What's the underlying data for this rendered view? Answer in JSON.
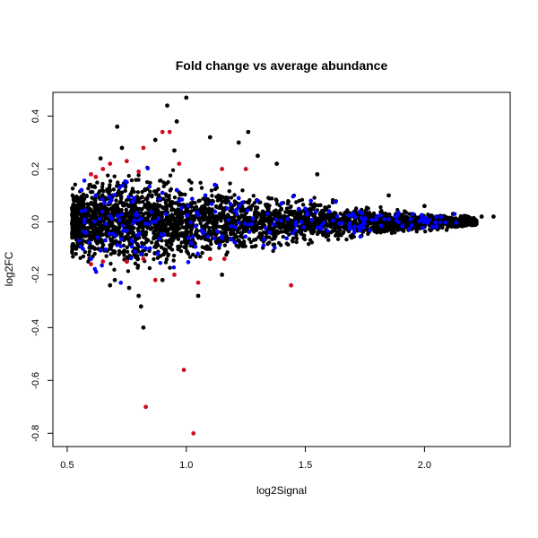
{
  "chart_data": {
    "type": "scatter",
    "title": "Fold change vs average abundance",
    "xlabel": "log2Signal",
    "ylabel": "log2FC",
    "xlim": [
      0.44,
      2.36
    ],
    "ylim": [
      -0.85,
      0.49
    ],
    "xticks": [
      0.5,
      1.0,
      1.5,
      2.0
    ],
    "yticks": [
      -0.8,
      -0.6,
      -0.4,
      -0.2,
      0.0,
      0.2,
      0.4
    ],
    "xtick_labels": [
      "0.5",
      "1.0",
      "1.5",
      "2.0"
    ],
    "ytick_labels": [
      "-0.8",
      "-0.6",
      "-0.4",
      "-0.2",
      "0.0",
      "0.2",
      "0.4"
    ],
    "grid": false,
    "legend": "none",
    "colors": {
      "black": "#000000",
      "blue": "#0000ff",
      "red": "#cd0a1e"
    },
    "series": [
      {
        "color": "black",
        "points": [
          [
            0.82,
            -0.4
          ],
          [
            0.81,
            -0.32
          ],
          [
            0.8,
            -0.28
          ],
          [
            0.92,
            0.44
          ],
          [
            1.0,
            0.47
          ],
          [
            0.96,
            0.38
          ],
          [
            0.87,
            0.31
          ],
          [
            0.71,
            0.36
          ],
          [
            1.22,
            0.3
          ],
          [
            1.26,
            0.34
          ],
          [
            1.1,
            0.32
          ],
          [
            1.3,
            0.25
          ],
          [
            1.05,
            -0.28
          ],
          [
            0.73,
            0.28
          ],
          [
            1.38,
            0.22
          ],
          [
            1.55,
            0.18
          ],
          [
            1.85,
            0.1
          ],
          [
            2.0,
            0.06
          ],
          [
            2.12,
            0.03
          ],
          [
            2.18,
            0.02
          ],
          [
            2.24,
            0.02
          ],
          [
            2.29,
            0.02
          ],
          [
            0.76,
            -0.25
          ],
          [
            0.9,
            -0.22
          ],
          [
            0.68,
            -0.24
          ],
          [
            1.15,
            -0.2
          ],
          [
            0.95,
            0.27
          ],
          [
            0.64,
            0.24
          ],
          [
            0.7,
            -0.22
          ],
          [
            1.65,
            -0.05
          ]
        ]
      },
      {
        "color": "blue",
        "points": [
          [
            0.56,
            0.12
          ],
          [
            0.62,
            0.1
          ],
          [
            0.66,
            -0.07
          ],
          [
            0.72,
            0.13
          ],
          [
            0.78,
            0.09
          ],
          [
            0.83,
            -0.1
          ],
          [
            0.9,
            0.11
          ],
          [
            0.96,
            0.12
          ],
          [
            1.02,
            -0.08
          ],
          [
            1.08,
            0.1
          ],
          [
            1.15,
            -0.06
          ],
          [
            1.22,
            0.09
          ],
          [
            1.3,
            0.08
          ],
          [
            1.4,
            0.07
          ],
          [
            1.5,
            0.05
          ],
          [
            1.6,
            0.04
          ],
          [
            1.7,
            0.03
          ],
          [
            1.8,
            0.02
          ],
          [
            1.95,
            0.03
          ],
          [
            2.05,
            0.02
          ],
          [
            0.6,
            -0.14
          ],
          [
            0.88,
            -0.12
          ],
          [
            1.12,
            0.14
          ],
          [
            1.35,
            -0.04
          ],
          [
            0.75,
            0.15
          ]
        ]
      },
      {
        "color": "red",
        "points": [
          [
            0.83,
            -0.7
          ],
          [
            0.99,
            -0.56
          ],
          [
            1.03,
            -0.8
          ],
          [
            1.44,
            -0.24
          ],
          [
            0.9,
            0.34
          ],
          [
            0.93,
            0.34
          ],
          [
            0.82,
            0.28
          ],
          [
            0.6,
            0.18
          ],
          [
            0.62,
            0.17
          ],
          [
            0.65,
            0.2
          ],
          [
            0.68,
            0.22
          ],
          [
            0.75,
            0.23
          ],
          [
            0.8,
            0.19
          ],
          [
            0.97,
            0.22
          ],
          [
            1.15,
            0.2
          ],
          [
            1.25,
            0.2
          ],
          [
            0.6,
            -0.16
          ],
          [
            0.65,
            -0.15
          ],
          [
            0.75,
            -0.15
          ],
          [
            0.82,
            -0.14
          ],
          [
            0.87,
            -0.22
          ],
          [
            0.95,
            -0.2
          ],
          [
            1.05,
            -0.23
          ],
          [
            1.1,
            -0.14
          ],
          [
            1.16,
            -0.14
          ]
        ]
      }
    ],
    "density": {
      "description_free": true,
      "x_start": 0.52,
      "x_end": 2.22,
      "half_width_profile": [
        [
          0.52,
          0.13
        ],
        [
          0.6,
          0.16
        ],
        [
          0.8,
          0.17
        ],
        [
          1.0,
          0.15
        ],
        [
          1.2,
          0.12
        ],
        [
          1.5,
          0.08
        ],
        [
          1.8,
          0.05
        ],
        [
          2.0,
          0.035
        ],
        [
          2.22,
          0.02
        ]
      ],
      "center_y": 0.0
    }
  }
}
